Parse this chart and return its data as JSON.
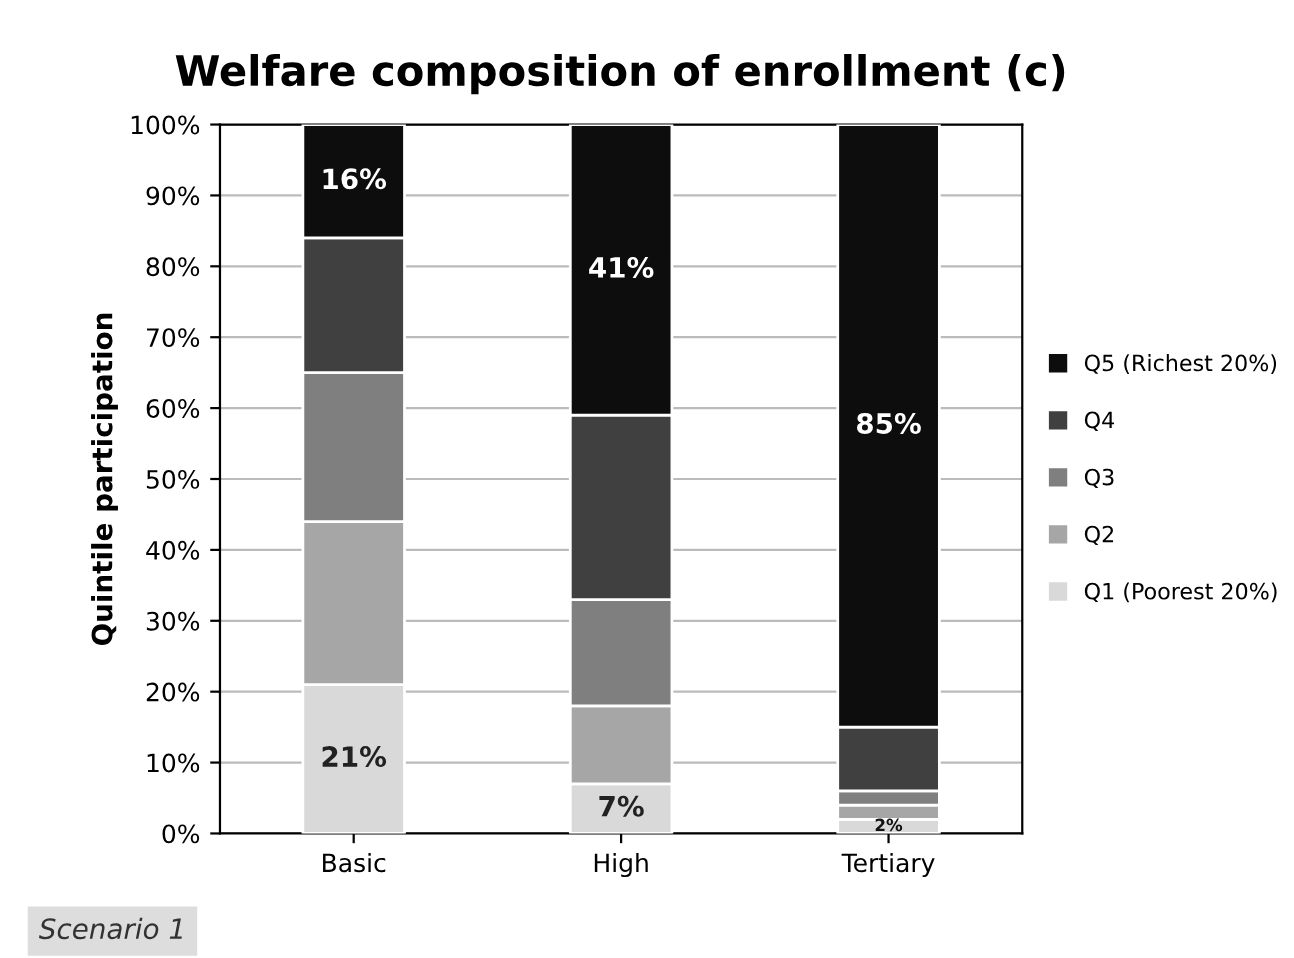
{
  "chart_data": {
    "type": "bar",
    "title": "Welfare composition of enrollment (c)",
    "ylabel": "Quintile participation",
    "categories": [
      "Basic",
      "High",
      "Tertiary"
    ],
    "stacked": true,
    "ylim": [
      0,
      100
    ],
    "yticks": [
      {
        "value": 0,
        "label": "0%"
      },
      {
        "value": 10,
        "label": "10%"
      },
      {
        "value": 20,
        "label": "20%"
      },
      {
        "value": 30,
        "label": "30%"
      },
      {
        "value": 40,
        "label": "40%"
      },
      {
        "value": 50,
        "label": "50%"
      },
      {
        "value": 60,
        "label": "60%"
      },
      {
        "value": 70,
        "label": "70%"
      },
      {
        "value": 80,
        "label": "80%"
      },
      {
        "value": 90,
        "label": "90%"
      },
      {
        "value": 100,
        "label": "100%"
      }
    ],
    "grid": "y",
    "legend": "right",
    "series": [
      {
        "name": "Q1 (Poorest 20%)",
        "color": "#d9d9d9",
        "values": [
          21,
          7,
          2
        ],
        "value_labels": [
          "21%",
          "7%",
          "2%"
        ]
      },
      {
        "name": "Q2",
        "color": "#a6a6a6",
        "values": [
          23,
          11,
          2
        ]
      },
      {
        "name": "Q3",
        "color": "#7f7f7f",
        "values": [
          21,
          15,
          2
        ]
      },
      {
        "name": "Q4",
        "color": "#404040",
        "values": [
          19,
          26,
          9
        ]
      },
      {
        "name": "Q5 (Richest 20%)",
        "color": "#0d0d0d",
        "values": [
          16,
          41,
          85
        ],
        "value_labels": [
          "16%",
          "41%",
          "85%"
        ]
      }
    ],
    "annotations": [
      "Scenario 1"
    ]
  }
}
